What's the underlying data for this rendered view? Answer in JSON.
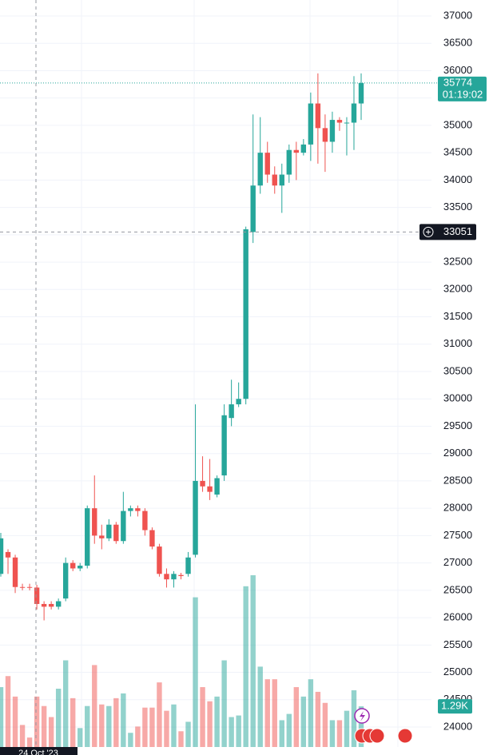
{
  "chart_data": {
    "type": "candlestick",
    "open": [
      26800,
      27200,
      27100,
      26560,
      26560,
      26550,
      26250,
      26250,
      26200,
      26350,
      27000,
      26900,
      26950,
      28000,
      27500,
      27450,
      27700,
      27400,
      27950,
      28000,
      27950,
      27600,
      27300,
      26800,
      26700,
      26780,
      26800,
      27150,
      28500,
      28400,
      28250,
      28600,
      29650,
      29900,
      30000,
      33050,
      33900,
      34500,
      34100,
      33900,
      34100,
      34550,
      34500,
      34650,
      35400,
      34950,
      34700,
      35100,
      35050,
      35050,
      35400
    ],
    "high": [
      27550,
      27250,
      27150,
      26620,
      26620,
      26600,
      26300,
      26300,
      26350,
      27100,
      27050,
      27000,
      28050,
      28600,
      27700,
      27800,
      27750,
      28300,
      28050,
      28050,
      28000,
      27650,
      27350,
      26900,
      26850,
      26820,
      27200,
      29900,
      28950,
      28900,
      28600,
      29900,
      30350,
      30300,
      33150,
      35200,
      35150,
      34700,
      34250,
      34300,
      34650,
      34700,
      34750,
      35600,
      35950,
      35200,
      35250,
      35150,
      35150,
      35900,
      35950
    ],
    "low": [
      26750,
      26800,
      26450,
      26500,
      26500,
      26150,
      25950,
      26150,
      26150,
      26300,
      26850,
      26850,
      26900,
      27350,
      27250,
      27400,
      27350,
      27350,
      27850,
      27850,
      27500,
      27250,
      26750,
      26550,
      26550,
      26700,
      26750,
      27100,
      28300,
      28150,
      28200,
      28500,
      29500,
      29850,
      29900,
      32850,
      33750,
      33950,
      33750,
      33400,
      33950,
      34000,
      34450,
      34350,
      34300,
      34150,
      34500,
      34900,
      34450,
      34550,
      35100
    ],
    "close": [
      27450,
      27100,
      26560,
      26550,
      26550,
      26250,
      26200,
      26200,
      26300,
      27000,
      26900,
      26950,
      28000,
      27500,
      27450,
      27700,
      27400,
      27950,
      28000,
      27950,
      27600,
      27300,
      26800,
      26700,
      26800,
      26760,
      27100,
      28500,
      28400,
      28300,
      28550,
      29700,
      29900,
      30000,
      33100,
      33900,
      34500,
      34100,
      33900,
      34100,
      34550,
      34500,
      34650,
      35400,
      34950,
      34700,
      35100,
      35050,
      35050,
      35400,
      35774
    ],
    "volume": [
      1.9,
      2.25,
      1.6,
      0.7,
      0.3,
      1.6,
      1.3,
      0.95,
      1.85,
      2.75,
      1.55,
      0.6,
      1.3,
      2.6,
      1.35,
      1.3,
      1.55,
      1.7,
      0.45,
      0.65,
      1.25,
      1.25,
      2.05,
      1.15,
      1.35,
      0.5,
      0.8,
      4.75,
      1.9,
      1.45,
      1.6,
      2.75,
      0.95,
      1.0,
      5.1,
      5.45,
      2.55,
      2.15,
      2.15,
      0.85,
      1.05,
      1.9,
      1.6,
      2.15,
      1.75,
      1.4,
      0.85,
      0.85,
      1.15,
      1.8,
      1.29
    ],
    "volume_ylim": [
      0,
      23.7
    ],
    "volume_label": "1.29K",
    "up_color": "#26a69a",
    "down_color": "#ef5350",
    "ylim": [
      23635,
      37292
    ],
    "yticks": [
      24000,
      24500,
      25000,
      25500,
      26000,
      26500,
      27000,
      27500,
      28000,
      28500,
      29000,
      29500,
      30000,
      30500,
      31000,
      31500,
      32000,
      32500,
      33000,
      33500,
      34000,
      34500,
      35000,
      35500,
      36000,
      36500,
      37000
    ],
    "grid": true,
    "last_price": 35774,
    "countdown": "01:19:02",
    "crosshair_price": 33051,
    "crosshair_date": "24 Oct '23"
  }
}
